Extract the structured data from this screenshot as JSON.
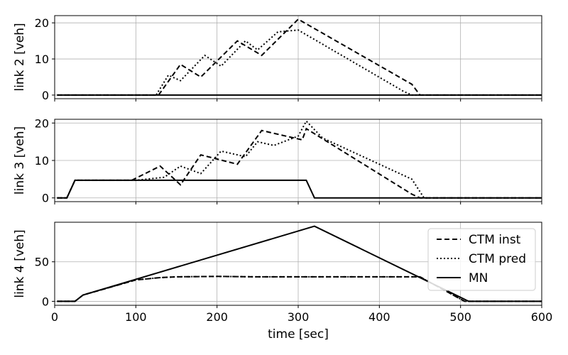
{
  "chart_data": [
    {
      "type": "line",
      "xlabel": "",
      "ylabel": "link 2 [veh]",
      "xlim": [
        0,
        600
      ],
      "ylim": [
        -1,
        22
      ],
      "xticks": [
        0,
        100,
        200,
        300,
        400,
        500,
        600
      ],
      "yticks": [
        0,
        10,
        20
      ],
      "grid": true,
      "series": [
        {
          "name": "CTM inst",
          "style": "dashed",
          "x": [
            3,
            128,
            155,
            180,
            225,
            255,
            300,
            440,
            450,
            600
          ],
          "y": [
            0,
            0,
            8.5,
            5,
            15,
            11,
            21,
            3,
            0,
            0
          ]
        },
        {
          "name": "CTM pred",
          "style": "dotted",
          "x": [
            3,
            125,
            140,
            155,
            185,
            205,
            235,
            250,
            275,
            300,
            430,
            440,
            600
          ],
          "y": [
            0,
            0,
            5.5,
            4,
            11,
            8,
            15,
            12.5,
            17.5,
            18,
            1,
            0,
            0
          ]
        },
        {
          "name": "MN",
          "style": "solid",
          "x": [
            3,
            600
          ],
          "y": [
            0,
            0
          ]
        }
      ]
    },
    {
      "type": "line",
      "xlabel": "",
      "ylabel": "link 3 [veh]",
      "xlim": [
        0,
        600
      ],
      "ylim": [
        -1,
        21
      ],
      "xticks": [
        0,
        100,
        200,
        300,
        400,
        500,
        600
      ],
      "yticks": [
        0,
        10,
        20
      ],
      "grid": true,
      "series": [
        {
          "name": "CTM inst",
          "style": "dashed",
          "x": [
            3,
            15,
            25,
            95,
            130,
            155,
            180,
            225,
            255,
            305,
            310,
            440,
            450,
            600
          ],
          "y": [
            0,
            0,
            4.7,
            4.7,
            8.5,
            3.5,
            11.5,
            9,
            18,
            15.5,
            18.5,
            1,
            0,
            0
          ]
        },
        {
          "name": "CTM pred",
          "style": "dotted",
          "x": [
            3,
            15,
            25,
            100,
            135,
            155,
            180,
            205,
            235,
            250,
            270,
            300,
            310,
            330,
            440,
            455,
            600
          ],
          "y": [
            0,
            0,
            4.7,
            4.7,
            5.5,
            8.5,
            6.5,
            12.5,
            11,
            15,
            14,
            16.5,
            20.5,
            16,
            5,
            0,
            0
          ]
        },
        {
          "name": "MN",
          "style": "solid",
          "x": [
            3,
            15,
            25,
            310,
            320,
            600
          ],
          "y": [
            0,
            0,
            4.7,
            4.7,
            0,
            0
          ]
        }
      ]
    },
    {
      "type": "line",
      "xlabel": "time [sec]",
      "ylabel": "link 4 [veh]",
      "xlim": [
        0,
        600
      ],
      "ylim": [
        -5,
        100
      ],
      "xticks": [
        0,
        100,
        200,
        300,
        400,
        500,
        600
      ],
      "yticks": [
        0,
        50
      ],
      "grid": true,
      "legend": {
        "position": "top-right",
        "entries": [
          "CTM inst",
          "CTM pred",
          "MN"
        ]
      },
      "series": [
        {
          "name": "CTM inst",
          "style": "dashed",
          "x": [
            3,
            25,
            35,
            100,
            130,
            150,
            200,
            250,
            450,
            505,
            510,
            600
          ],
          "y": [
            0,
            0,
            8,
            27,
            30,
            31,
            31.5,
            31,
            31,
            0,
            0,
            0
          ]
        },
        {
          "name": "CTM pred",
          "style": "dotted",
          "x": [
            3,
            25,
            35,
            100,
            130,
            150,
            200,
            250,
            450,
            505,
            510,
            600
          ],
          "y": [
            0,
            0,
            8,
            27,
            30,
            31,
            31.5,
            31,
            31,
            0,
            0,
            0
          ]
        },
        {
          "name": "MN",
          "style": "solid",
          "x": [
            3,
            25,
            35,
            320,
            510,
            600
          ],
          "y": [
            0,
            0,
            8,
            95,
            0,
            0
          ]
        }
      ]
    }
  ]
}
